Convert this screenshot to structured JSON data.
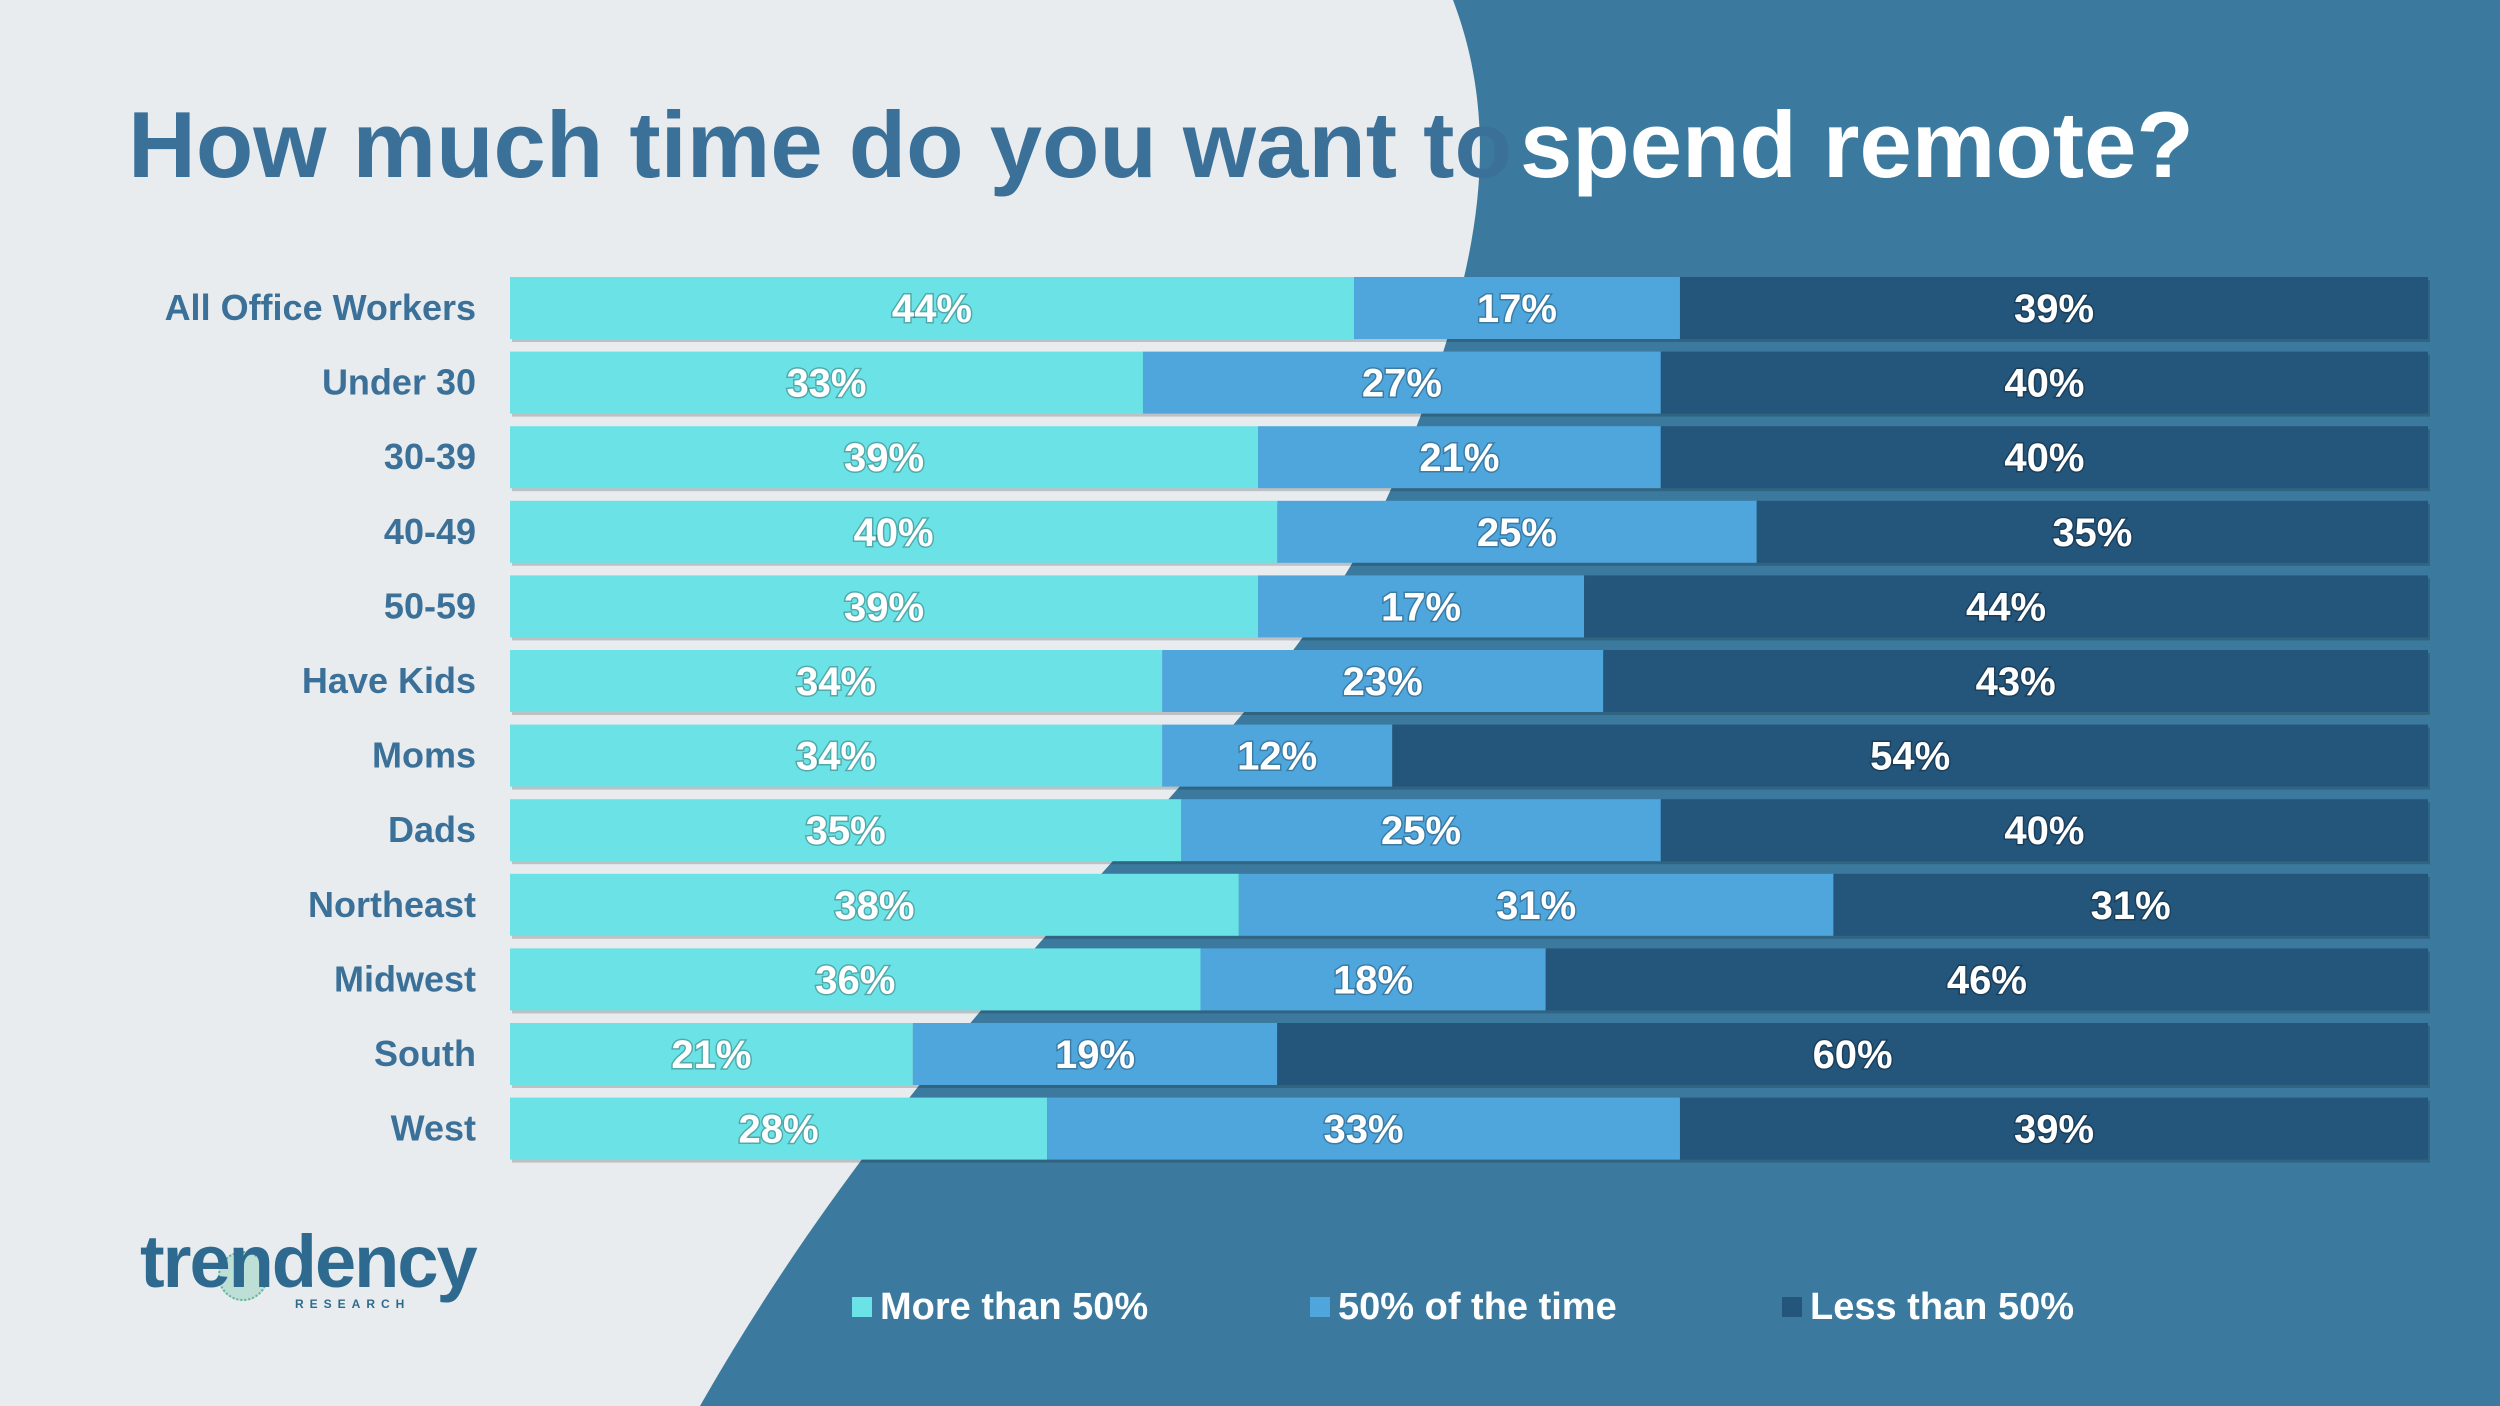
{
  "title": {
    "part1": "How much time do you want to",
    "part2": "spend remote?"
  },
  "logo": {
    "name": "trendency",
    "subtitle": "RESEARCH"
  },
  "colors": {
    "background_light": "#e8ecee",
    "background_dark": "#3b7a9e",
    "title_dark": "#3b7099",
    "more_than_50": "#6be3e6",
    "fifty_percent": "#4fa6dc",
    "less_than_50": "#24557a",
    "text_white": "#ffffff"
  },
  "chart_data": {
    "type": "bar",
    "orientation": "horizontal",
    "stacked": true,
    "title": "How much time do you want to spend remote?",
    "xlim": [
      0,
      100
    ],
    "categories": [
      "All Office Workers",
      "Under 30",
      "30-39",
      "40-49",
      "50-59",
      "Have Kids",
      "Moms",
      "Dads",
      "Northeast",
      "Midwest",
      "South",
      "West"
    ],
    "series": [
      {
        "name": "More than 50%",
        "color": "#6be3e6",
        "values": [
          44,
          33,
          39,
          40,
          39,
          34,
          34,
          35,
          38,
          36,
          21,
          28
        ]
      },
      {
        "name": "50% of the time",
        "color": "#4fa6dc",
        "values": [
          17,
          27,
          21,
          25,
          17,
          23,
          12,
          25,
          31,
          18,
          19,
          33
        ]
      },
      {
        "name": "Less than 50%",
        "color": "#24557a",
        "values": [
          39,
          40,
          40,
          35,
          44,
          43,
          54,
          40,
          31,
          46,
          60,
          39
        ]
      }
    ],
    "value_suffix": "%",
    "legend_position": "bottom"
  }
}
